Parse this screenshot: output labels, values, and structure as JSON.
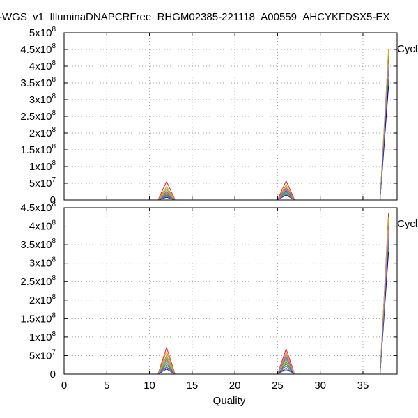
{
  "chart_data": [
    {
      "type": "line",
      "title": "-WGS_v1_IlluminaDNAPCRFree_RHGM02385-221118_A00559_AHCYKFDSX5-EX",
      "xlabel": "",
      "ylabel": "",
      "legend_label": "Cycl",
      "legend_position": "top-right",
      "grid": true,
      "xlim": [
        0,
        39
      ],
      "ylim": [
        0,
        500000000
      ],
      "xticks": [
        0,
        5,
        10,
        15,
        20,
        25,
        30,
        35
      ],
      "yticks": [
        {
          "value": 0,
          "mant": "0",
          "exp": ""
        },
        {
          "value": 50000000,
          "mant": "5x10",
          "exp": "7"
        },
        {
          "value": 100000000,
          "mant": "1x10",
          "exp": "8"
        },
        {
          "value": 150000000,
          "mant": "1.5x10",
          "exp": "8"
        },
        {
          "value": 200000000,
          "mant": "2x10",
          "exp": "8"
        },
        {
          "value": 250000000,
          "mant": "2.5x10",
          "exp": "8"
        },
        {
          "value": 300000000,
          "mant": "3x10",
          "exp": "8"
        },
        {
          "value": 350000000,
          "mant": "3.5x10",
          "exp": "8"
        },
        {
          "value": 400000000,
          "mant": "4x10",
          "exp": "8"
        },
        {
          "value": 450000000,
          "mant": "4.5x10",
          "exp": "8"
        },
        {
          "value": 500000000,
          "mant": "5x10",
          "exp": "8"
        }
      ],
      "x": [
        11,
        12,
        13,
        25,
        26,
        27,
        37,
        38
      ],
      "series": [
        {
          "color": "#e41a1c",
          "values": [
            0,
            55000000,
            0,
            0,
            57000000,
            0,
            0,
            420000000
          ]
        },
        {
          "color": "#ff7f00",
          "values": [
            0,
            40000000,
            0,
            0,
            45000000,
            0,
            0,
            450000000
          ]
        },
        {
          "color": "#4daf4a",
          "values": [
            0,
            33000000,
            0,
            0,
            38000000,
            0,
            0,
            440000000
          ]
        },
        {
          "color": "#984ea3",
          "values": [
            0,
            25000000,
            0,
            0,
            30000000,
            0,
            0,
            430000000
          ]
        },
        {
          "color": "#17becf",
          "values": [
            0,
            20000000,
            0,
            0,
            25000000,
            0,
            0,
            400000000
          ]
        },
        {
          "color": "#2ca02c",
          "values": [
            0,
            18000000,
            0,
            0,
            22000000,
            0,
            0,
            380000000
          ]
        },
        {
          "color": "#8c564b",
          "values": [
            0,
            15000000,
            0,
            0,
            35000000,
            0,
            0,
            360000000
          ]
        },
        {
          "color": "#1f77b4",
          "values": [
            0,
            12000000,
            0,
            0,
            28000000,
            0,
            0,
            350000000
          ]
        },
        {
          "color": "#0000cc",
          "values": [
            0,
            8000000,
            0,
            0,
            15000000,
            0,
            0,
            340000000
          ]
        },
        {
          "color": "#bcbd22",
          "values": [
            0,
            28000000,
            0,
            0,
            20000000,
            0,
            0,
            445000000
          ]
        },
        {
          "color": "#e377c2",
          "values": [
            0,
            22000000,
            0,
            0,
            32000000,
            0,
            0,
            410000000
          ]
        },
        {
          "color": "#7f7f7f",
          "values": [
            0,
            10000000,
            0,
            0,
            18000000,
            0,
            0,
            390000000
          ]
        }
      ]
    },
    {
      "type": "line",
      "title": "",
      "xlabel": "Quality",
      "ylabel": "",
      "legend_label": "Cycl",
      "legend_position": "top-right",
      "grid": true,
      "xlim": [
        0,
        39
      ],
      "ylim": [
        0,
        450000000
      ],
      "xticks": [
        0,
        5,
        10,
        15,
        20,
        25,
        30,
        35
      ],
      "yticks": [
        {
          "value": 0,
          "mant": "0",
          "exp": ""
        },
        {
          "value": 50000000,
          "mant": "5x10",
          "exp": "7"
        },
        {
          "value": 100000000,
          "mant": "1x10",
          "exp": "8"
        },
        {
          "value": 150000000,
          "mant": "1.5x10",
          "exp": "8"
        },
        {
          "value": 200000000,
          "mant": "2x10",
          "exp": "8"
        },
        {
          "value": 250000000,
          "mant": "2.5x10",
          "exp": "8"
        },
        {
          "value": 300000000,
          "mant": "3x10",
          "exp": "8"
        },
        {
          "value": 350000000,
          "mant": "3.5x10",
          "exp": "8"
        },
        {
          "value": 400000000,
          "mant": "4x10",
          "exp": "8"
        },
        {
          "value": 450000000,
          "mant": "4.5x10",
          "exp": "8"
        }
      ],
      "x": [
        11,
        12,
        13,
        25,
        26,
        27,
        37,
        38
      ],
      "series": [
        {
          "color": "#e41a1c",
          "values": [
            0,
            72000000,
            0,
            0,
            68000000,
            0,
            0,
            435000000
          ]
        },
        {
          "color": "#ff7f00",
          "values": [
            0,
            60000000,
            0,
            0,
            58000000,
            0,
            0,
            420000000
          ]
        },
        {
          "color": "#4daf4a",
          "values": [
            0,
            50000000,
            0,
            0,
            50000000,
            0,
            0,
            410000000
          ]
        },
        {
          "color": "#984ea3",
          "values": [
            0,
            42000000,
            0,
            0,
            45000000,
            0,
            0,
            400000000
          ]
        },
        {
          "color": "#17becf",
          "values": [
            0,
            35000000,
            0,
            0,
            40000000,
            0,
            0,
            380000000
          ]
        },
        {
          "color": "#2ca02c",
          "values": [
            0,
            30000000,
            0,
            0,
            33000000,
            0,
            0,
            370000000
          ]
        },
        {
          "color": "#8c564b",
          "values": [
            0,
            25000000,
            0,
            0,
            28000000,
            0,
            0,
            355000000
          ]
        },
        {
          "color": "#1f77b4",
          "values": [
            0,
            20000000,
            0,
            0,
            22000000,
            0,
            0,
            345000000
          ]
        },
        {
          "color": "#0000cc",
          "values": [
            0,
            14000000,
            0,
            0,
            16000000,
            0,
            0,
            330000000
          ]
        },
        {
          "color": "#bcbd22",
          "values": [
            0,
            45000000,
            0,
            0,
            38000000,
            0,
            0,
            425000000
          ]
        },
        {
          "color": "#e377c2",
          "values": [
            0,
            38000000,
            0,
            0,
            55000000,
            0,
            0,
            390000000
          ]
        },
        {
          "color": "#7f7f7f",
          "values": [
            0,
            18000000,
            0,
            0,
            12000000,
            0,
            0,
            365000000
          ]
        }
      ]
    }
  ]
}
